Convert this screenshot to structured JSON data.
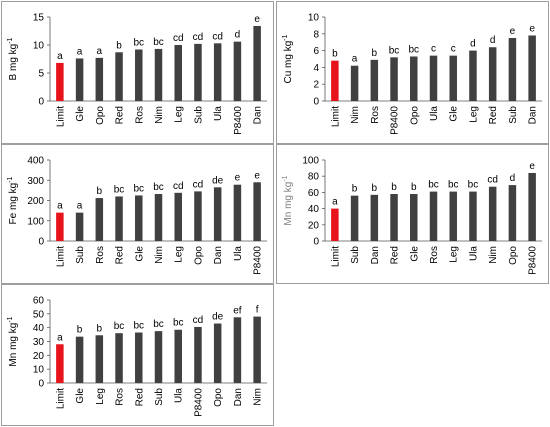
{
  "colors": {
    "limit": "#e8141b",
    "bar": "#404040",
    "axis": "#595959",
    "grid": "#d9d9d9",
    "text": "#000000",
    "ylabel_p4": "#7f7f7f"
  },
  "chart_data": [
    {
      "type": "bar",
      "ylabel": "B mg kg",
      "ylabel_sup": "-1",
      "ylim": [
        0,
        15
      ],
      "yticks": [
        0,
        5,
        10,
        15
      ],
      "grid": false,
      "categories": [
        "Limit",
        "Gle",
        "Opo",
        "Red",
        "Ros",
        "Nim",
        "Leg",
        "Sub",
        "Ula",
        "P8400",
        "Dan"
      ],
      "values": [
        6.8,
        7.6,
        7.7,
        8.7,
        9.2,
        9.3,
        10.0,
        10.2,
        10.3,
        10.6,
        13.4
      ],
      "letters": [
        "a",
        "a",
        "a",
        "b",
        "bc",
        "bc",
        "cd",
        "cd",
        "cd",
        "d",
        "e"
      ],
      "highlight": [
        0
      ]
    },
    {
      "type": "bar",
      "ylabel": "Cu mg kg",
      "ylabel_sup": "-1",
      "ylim": [
        0,
        10
      ],
      "yticks": [
        0,
        2,
        4,
        6,
        8,
        10
      ],
      "grid": false,
      "categories": [
        "Limit",
        "Nim",
        "Ros",
        "P8400",
        "Opo",
        "Ula",
        "Gle",
        "Leg",
        "Red",
        "Sub",
        "Dan"
      ],
      "values": [
        4.8,
        4.2,
        4.9,
        5.2,
        5.3,
        5.4,
        5.4,
        6.0,
        6.4,
        7.5,
        7.8
      ],
      "letters": [
        "b",
        "a",
        "b",
        "bc",
        "bc",
        "c",
        "c",
        "d",
        "d",
        "e",
        "e"
      ],
      "highlight": [
        0
      ]
    },
    {
      "type": "bar",
      "ylabel": "Fe mg kg",
      "ylabel_sup": "-1",
      "ylim": [
        0,
        400
      ],
      "yticks": [
        0,
        100,
        200,
        300,
        400
      ],
      "grid": false,
      "categories": [
        "Limit",
        "Sub",
        "Ros",
        "Red",
        "Gle",
        "Nim",
        "Leg",
        "Opo",
        "Dan",
        "Ula",
        "P8400"
      ],
      "values": [
        140,
        140,
        212,
        220,
        225,
        232,
        238,
        245,
        265,
        278,
        290
      ],
      "letters": [
        "a",
        "a",
        "b",
        "bc",
        "bc",
        "bc",
        "cd",
        "cd",
        "de",
        "e",
        "e"
      ],
      "highlight": [
        0
      ]
    },
    {
      "type": "bar",
      "ylabel": "Mn mg kg",
      "ylabel_sup": "-1",
      "ylim": [
        0,
        100
      ],
      "yticks": [
        0,
        20,
        40,
        60,
        80,
        100
      ],
      "grid": false,
      "categories": [
        "Limit",
        "Sub",
        "Dan",
        "Red",
        "Gle",
        "Ros",
        "Leg",
        "Ula",
        "Nim",
        "Opo",
        "P8400"
      ],
      "values": [
        40,
        56,
        57,
        58,
        58,
        61,
        61,
        61,
        67,
        69,
        84
      ],
      "letters": [
        "a",
        "b",
        "b",
        "b",
        "b",
        "bc",
        "bc",
        "bc",
        "cd",
        "d",
        "e"
      ],
      "highlight": [
        0
      ]
    },
    {
      "type": "bar",
      "ylabel": "Mn mg kg",
      "ylabel_sup": "-1",
      "ylim": [
        0,
        60
      ],
      "yticks": [
        0,
        10,
        20,
        30,
        40,
        50,
        60
      ],
      "grid": false,
      "categories": [
        "Limit",
        "Gle",
        "Leg",
        "Ros",
        "Red",
        "Sub",
        "Ula",
        "P8400",
        "Opo",
        "Dan",
        "Nim"
      ],
      "values": [
        28,
        33.5,
        34.5,
        36,
        36.5,
        37.5,
        38.5,
        40.5,
        43,
        47.5,
        48
      ],
      "letters": [
        "a",
        "b",
        "b",
        "bc",
        "bc",
        "bc",
        "bc",
        "cd",
        "de",
        "ef",
        "f"
      ],
      "highlight": [
        0
      ]
    }
  ]
}
